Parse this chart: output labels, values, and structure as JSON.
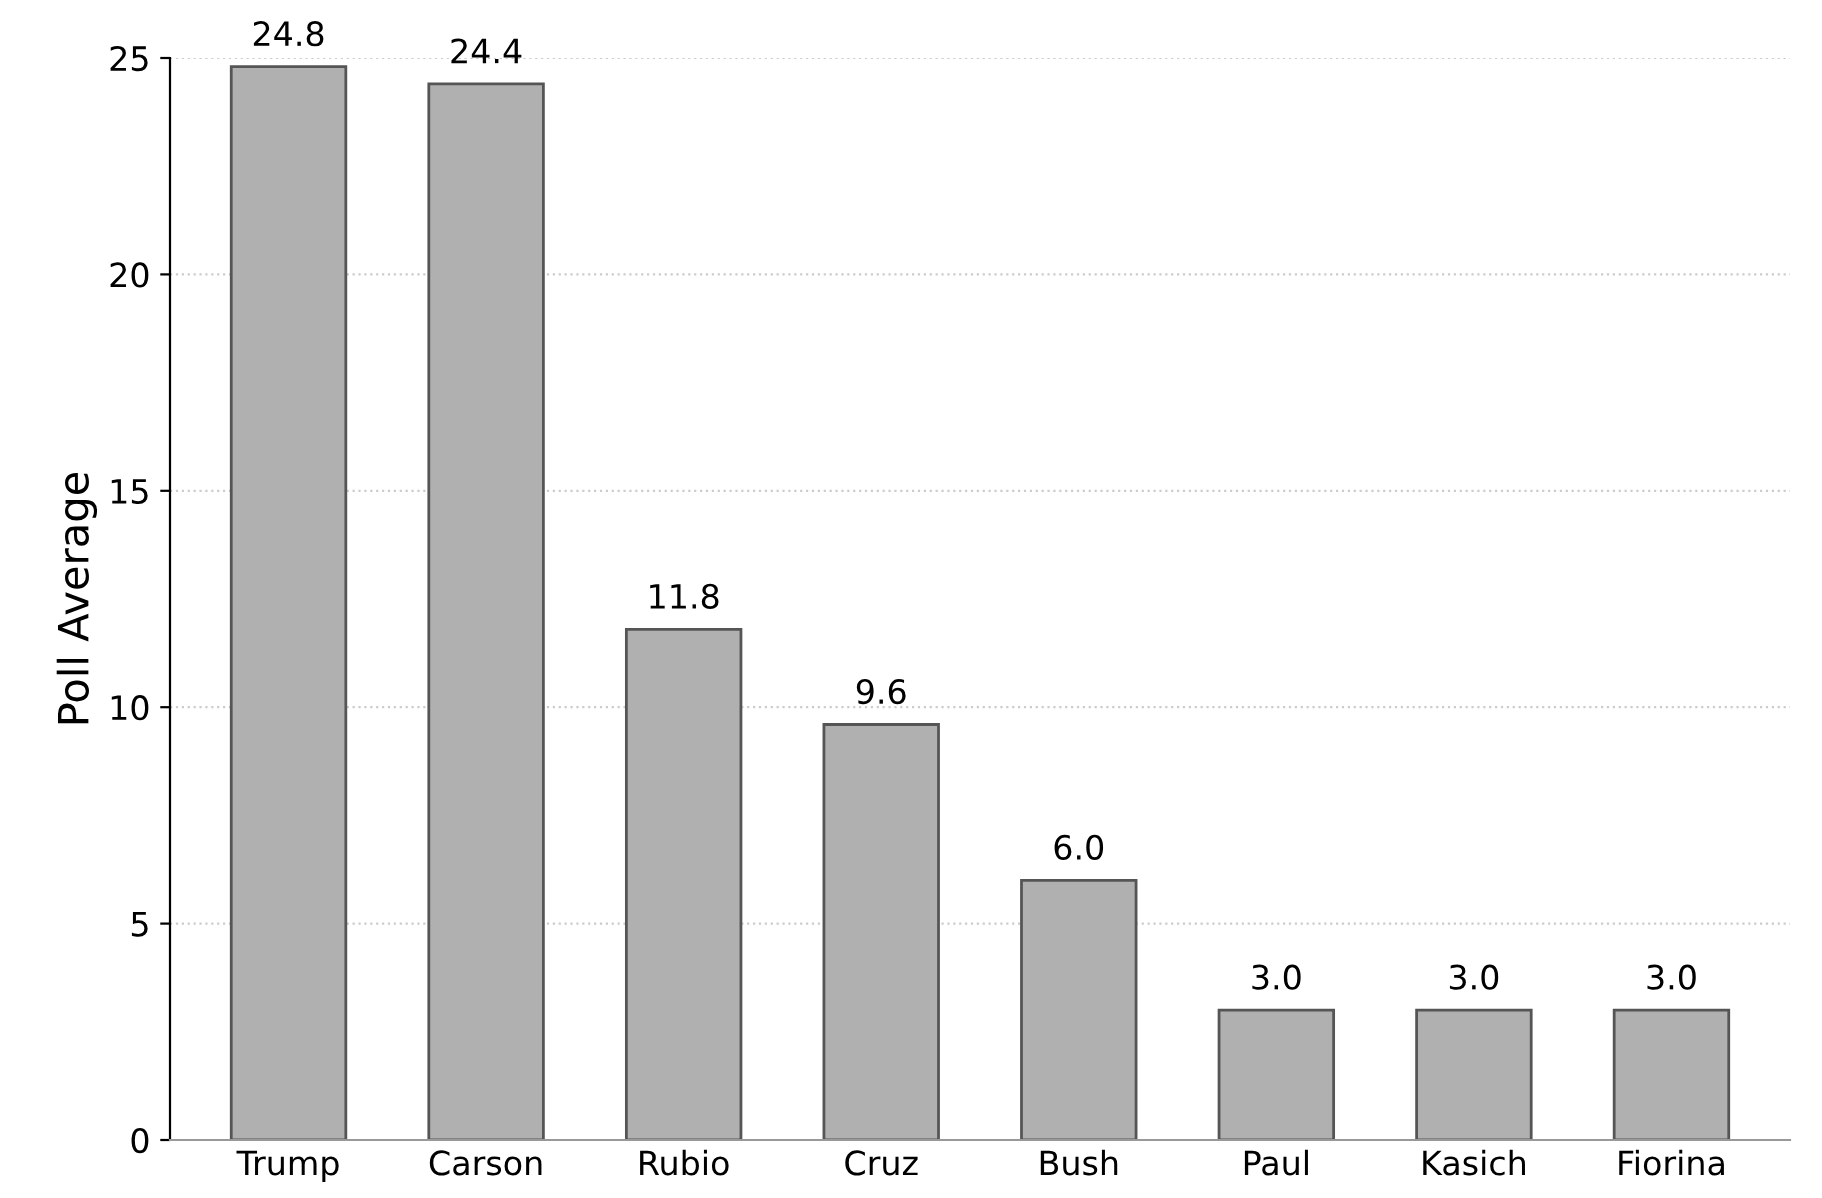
{
  "chart_data": {
    "type": "bar",
    "ylabel": "Poll Average",
    "categories": [
      "Trump",
      "Carson",
      "Rubio",
      "Cruz",
      "Bush",
      "Paul",
      "Kasich",
      "Fiorina"
    ],
    "values": [
      24.8,
      24.4,
      11.8,
      9.6,
      6.0,
      3.0,
      3.0,
      3.0
    ],
    "color": "#b0b0b0",
    "ylim": [
      0,
      25
    ],
    "yticks": [
      0,
      5,
      10,
      15,
      20,
      25
    ],
    "grid": "y",
    "value_labels": [
      "24.8",
      "24.4",
      "11.8",
      "9.6",
      "6.0",
      "3.0",
      "3.0",
      "3.0"
    ]
  }
}
